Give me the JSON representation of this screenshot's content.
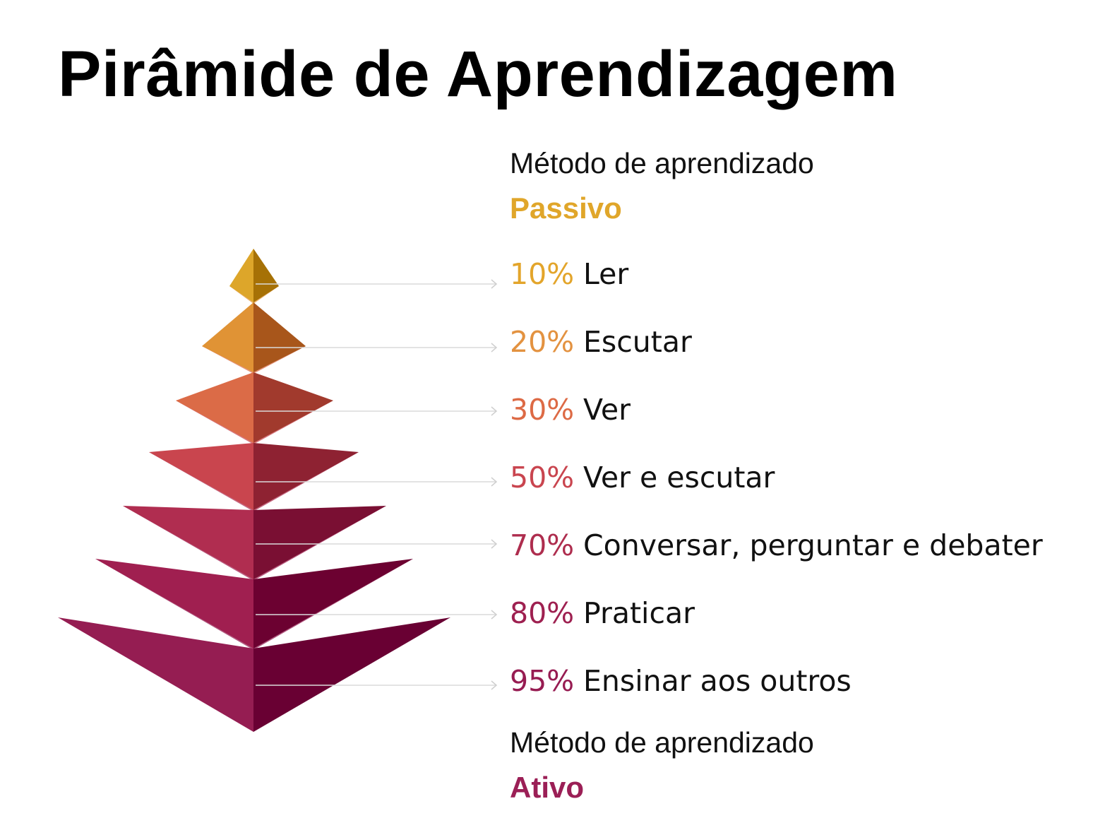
{
  "title": "Pirâmide de Aprendizagem",
  "passive": {
    "caption": "Método de aprendizado",
    "label": "Passivo",
    "color": "#E0A62A"
  },
  "active": {
    "caption": "Método de aprendizado",
    "label": "Ativo",
    "color": "#9B1F56"
  },
  "levels": [
    {
      "percent": "10%",
      "label": "Ler",
      "color": "#E3A52B",
      "left_color": "#DDA62A",
      "right_color": "#A67106"
    },
    {
      "percent": "20%",
      "label": "Escutar",
      "color": "#E39240",
      "left_color": "#E09335",
      "right_color": "#A8561B"
    },
    {
      "percent": "30%",
      "label": "Ver",
      "color": "#DD6A45",
      "left_color": "#DB6B47",
      "right_color": "#A13A2D"
    },
    {
      "percent": "50%",
      "label": "Ver e escutar",
      "color": "#C9454F",
      "left_color": "#C9454E",
      "right_color": "#8E2232"
    },
    {
      "percent": "70%",
      "label": "Conversar, perguntar e debater",
      "color": "#AE2D4E",
      "left_color": "#B02D50",
      "right_color": "#7A0F33"
    },
    {
      "percent": "80%",
      "label": "Praticar",
      "color": "#9E2050",
      "left_color": "#A01F50",
      "right_color": "#6C0131"
    },
    {
      "percent": "95%",
      "label": "Ensinar aos outros",
      "color": "#971C52",
      "left_color": "#951D52",
      "right_color": "#690033"
    }
  ]
}
